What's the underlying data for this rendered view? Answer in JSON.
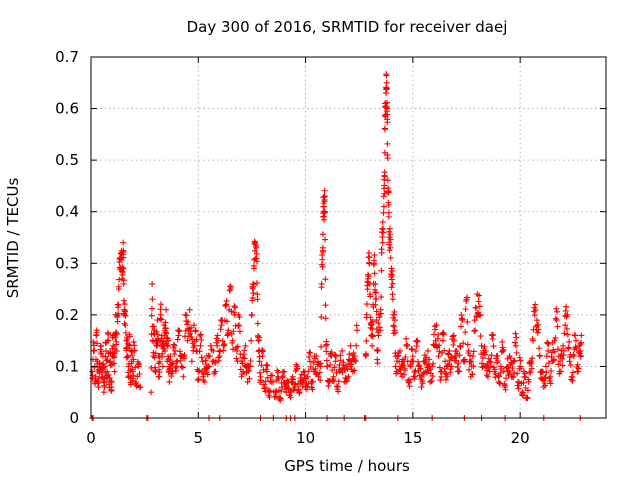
{
  "chart_data": {
    "type": "scatter",
    "title": "Day 300 of 2016, SRMTID for receiver daej",
    "xlabel": "GPS time / hours",
    "ylabel": "SRMTID / TECUs",
    "xlim": [
      0,
      24
    ],
    "ylim": [
      0,
      0.7
    ],
    "xticks": [
      0,
      5,
      10,
      15,
      20
    ],
    "yticks": [
      0,
      0.1,
      0.2,
      0.3,
      0.4,
      0.5,
      0.6,
      0.7
    ],
    "ytick_labels": [
      "0",
      "0.1",
      "0.2",
      "0.3",
      "0.4",
      "0.5",
      "0.6",
      "0.7"
    ],
    "grid": true,
    "marker": "+",
    "color": "#ff0000",
    "series": [
      {
        "name": "SRMTID",
        "points": [
          [
            0.05,
            0.09
          ],
          [
            0.12,
            0.13
          ],
          [
            0.2,
            0.07
          ],
          [
            0.25,
            0.16
          ],
          [
            0.3,
            0.11
          ],
          [
            0.35,
            0.06
          ],
          [
            0.4,
            0.1
          ],
          [
            0.45,
            0.14
          ],
          [
            0.5,
            0.08
          ],
          [
            0.55,
            0.12
          ],
          [
            0.6,
            0.05
          ],
          [
            0.65,
            0.1
          ],
          [
            0.7,
            0.13
          ],
          [
            0.75,
            0.09
          ],
          [
            0.8,
            0.15
          ],
          [
            0.85,
            0.07
          ],
          [
            0.9,
            0.11
          ],
          [
            0.95,
            0.06
          ],
          [
            1.0,
            0.12
          ],
          [
            1.05,
            0.16
          ],
          [
            1.1,
            0.09
          ],
          [
            1.15,
            0.2
          ],
          [
            1.2,
            0.13
          ],
          [
            1.25,
            0.22
          ],
          [
            1.3,
            0.25
          ],
          [
            1.35,
            0.31
          ],
          [
            1.4,
            0.32
          ],
          [
            1.45,
            0.27
          ],
          [
            1.5,
            0.34
          ],
          [
            1.52,
            0.26
          ],
          [
            1.55,
            0.21
          ],
          [
            1.6,
            0.18
          ],
          [
            1.65,
            0.15
          ],
          [
            1.7,
            0.12
          ],
          [
            1.75,
            0.1
          ],
          [
            1.8,
            0.14
          ],
          [
            1.85,
            0.08
          ],
          [
            1.9,
            0.11
          ],
          [
            1.95,
            0.09
          ],
          [
            2.0,
            0.13
          ],
          [
            2.1,
            0.07
          ],
          [
            2.2,
            0.1
          ],
          [
            2.3,
            0.06
          ],
          [
            2.8,
            0.05
          ],
          [
            2.85,
            0.26
          ],
          [
            2.9,
            0.12
          ],
          [
            2.95,
            0.17
          ],
          [
            3.0,
            0.09
          ],
          [
            3.05,
            0.14
          ],
          [
            3.1,
            0.19
          ],
          [
            3.15,
            0.08
          ],
          [
            3.2,
            0.12
          ],
          [
            3.25,
            0.2
          ],
          [
            3.3,
            0.16
          ],
          [
            3.35,
            0.1
          ],
          [
            3.4,
            0.18
          ],
          [
            3.45,
            0.13
          ],
          [
            3.5,
            0.21
          ],
          [
            3.55,
            0.11
          ],
          [
            3.6,
            0.15
          ],
          [
            3.65,
            0.07
          ],
          [
            3.7,
            0.12
          ],
          [
            3.8,
            0.09
          ],
          [
            3.9,
            0.14
          ],
          [
            4.0,
            0.1
          ],
          [
            4.1,
            0.17
          ],
          [
            4.2,
            0.12
          ],
          [
            4.3,
            0.08
          ],
          [
            4.4,
            0.2
          ],
          [
            4.5,
            0.15
          ],
          [
            4.6,
            0.21
          ],
          [
            4.7,
            0.11
          ],
          [
            4.8,
            0.18
          ],
          [
            4.9,
            0.13
          ],
          [
            5.0,
            0.09
          ],
          [
            5.1,
            0.14
          ],
          [
            5.2,
            0.11
          ],
          [
            5.3,
            0.07
          ],
          [
            5.4,
            0.12
          ],
          [
            5.5,
            0.1
          ],
          [
            5.7,
            0.13
          ],
          [
            5.8,
            0.09
          ],
          [
            5.9,
            0.16
          ],
          [
            6.0,
            0.12
          ],
          [
            6.1,
            0.19
          ],
          [
            6.2,
            0.14
          ],
          [
            6.3,
            0.22
          ],
          [
            6.4,
            0.17
          ],
          [
            6.5,
            0.25
          ],
          [
            6.6,
            0.15
          ],
          [
            6.7,
            0.2
          ],
          [
            6.8,
            0.13
          ],
          [
            6.9,
            0.18
          ],
          [
            7.0,
            0.11
          ],
          [
            7.1,
            0.09
          ],
          [
            7.2,
            0.14
          ],
          [
            7.3,
            0.07
          ],
          [
            7.4,
            0.1
          ],
          [
            7.5,
            0.2
          ],
          [
            7.55,
            0.26
          ],
          [
            7.6,
            0.29
          ],
          [
            7.65,
            0.34
          ],
          [
            7.7,
            0.33
          ],
          [
            7.75,
            0.24
          ],
          [
            7.8,
            0.15
          ],
          [
            7.85,
            0.11
          ],
          [
            7.9,
            0.08
          ],
          [
            8.0,
            0.12
          ],
          [
            8.1,
            0.06
          ],
          [
            8.2,
            0.09
          ],
          [
            8.3,
            0.05
          ],
          [
            8.4,
            0.07
          ],
          [
            8.6,
            0.05
          ],
          [
            8.7,
            0.08
          ],
          [
            8.8,
            0.04
          ],
          [
            8.9,
            0.06
          ],
          [
            9.0,
            0.09
          ],
          [
            9.1,
            0.05
          ],
          [
            9.2,
            0.07
          ],
          [
            9.3,
            0.04
          ],
          [
            9.4,
            0.08
          ],
          [
            9.5,
            0.06
          ],
          [
            9.6,
            0.1
          ],
          [
            9.7,
            0.05
          ],
          [
            9.8,
            0.07
          ],
          [
            9.9,
            0.09
          ],
          [
            10.0,
            0.06
          ],
          [
            10.1,
            0.08
          ],
          [
            10.2,
            0.11
          ],
          [
            10.3,
            0.07
          ],
          [
            10.4,
            0.09
          ],
          [
            10.5,
            0.12
          ],
          [
            10.6,
            0.08
          ],
          [
            10.7,
            0.1
          ],
          [
            10.75,
            0.26
          ],
          [
            10.8,
            0.33
          ],
          [
            10.82,
            0.39
          ],
          [
            10.85,
            0.41
          ],
          [
            10.88,
            0.42
          ],
          [
            10.9,
            0.4
          ],
          [
            10.95,
            0.14
          ],
          [
            11.0,
            0.1
          ],
          [
            11.1,
            0.07
          ],
          [
            11.2,
            0.12
          ],
          [
            11.3,
            0.08
          ],
          [
            11.4,
            0.11
          ],
          [
            11.5,
            0.06
          ],
          [
            11.6,
            0.09
          ],
          [
            11.7,
            0.13
          ],
          [
            11.8,
            0.07
          ],
          [
            11.9,
            0.1
          ],
          [
            12.0,
            0.08
          ],
          [
            12.1,
            0.14
          ],
          [
            12.2,
            0.09
          ],
          [
            12.3,
            0.12
          ],
          [
            12.4,
            0.17
          ],
          [
            12.8,
            0.12
          ],
          [
            12.85,
            0.2
          ],
          [
            12.9,
            0.27
          ],
          [
            12.95,
            0.32
          ],
          [
            13.0,
            0.24
          ],
          [
            13.05,
            0.18
          ],
          [
            13.1,
            0.14
          ],
          [
            13.15,
            0.22
          ],
          [
            13.2,
            0.3
          ],
          [
            13.25,
            0.26
          ],
          [
            13.3,
            0.19
          ],
          [
            13.35,
            0.13
          ],
          [
            13.4,
            0.16
          ],
          [
            13.5,
            0.21
          ],
          [
            13.55,
            0.32
          ],
          [
            13.6,
            0.38
          ],
          [
            13.65,
            0.41
          ],
          [
            13.68,
            0.47
          ],
          [
            13.7,
            0.56
          ],
          [
            13.72,
            0.61
          ],
          [
            13.75,
            0.63
          ],
          [
            13.78,
            0.65
          ],
          [
            13.8,
            0.6
          ],
          [
            13.82,
            0.51
          ],
          [
            13.85,
            0.44
          ],
          [
            13.88,
            0.39
          ],
          [
            13.9,
            0.35
          ],
          [
            13.95,
            0.33
          ],
          [
            14.0,
            0.29
          ],
          [
            14.05,
            0.24
          ],
          [
            14.1,
            0.2
          ],
          [
            14.15,
            0.17
          ],
          [
            14.2,
            0.12
          ],
          [
            14.3,
            0.09
          ],
          [
            14.4,
            0.13
          ],
          [
            14.5,
            0.08
          ],
          [
            14.6,
            0.11
          ],
          [
            14.7,
            0.14
          ],
          [
            14.8,
            0.07
          ],
          [
            14.9,
            0.1
          ],
          [
            15.0,
            0.12
          ],
          [
            15.1,
            0.08
          ],
          [
            15.2,
            0.15
          ],
          [
            15.3,
            0.1
          ],
          [
            15.4,
            0.06
          ],
          [
            15.5,
            0.11
          ],
          [
            15.6,
            0.09
          ],
          [
            15.7,
            0.13
          ],
          [
            15.8,
            0.07
          ],
          [
            15.9,
            0.1
          ],
          [
            16.0,
            0.14
          ],
          [
            16.1,
            0.18
          ],
          [
            16.2,
            0.12
          ],
          [
            16.3,
            0.09
          ],
          [
            16.4,
            0.15
          ],
          [
            16.5,
            0.11
          ],
          [
            16.6,
            0.08
          ],
          [
            16.7,
            0.13
          ],
          [
            16.8,
            0.1
          ],
          [
            16.9,
            0.16
          ],
          [
            17.0,
            0.12
          ],
          [
            17.1,
            0.09
          ],
          [
            17.2,
            0.14
          ],
          [
            17.3,
            0.19
          ],
          [
            17.4,
            0.11
          ],
          [
            17.5,
            0.23
          ],
          [
            17.6,
            0.13
          ],
          [
            17.7,
            0.08
          ],
          [
            17.8,
            0.12
          ],
          [
            17.9,
            0.17
          ],
          [
            18.0,
            0.24
          ],
          [
            18.1,
            0.2
          ],
          [
            18.2,
            0.14
          ],
          [
            18.3,
            0.1
          ],
          [
            18.4,
            0.13
          ],
          [
            18.5,
            0.08
          ],
          [
            18.6,
            0.11
          ],
          [
            18.7,
            0.16
          ],
          [
            18.8,
            0.09
          ],
          [
            18.9,
            0.12
          ],
          [
            19.0,
            0.07
          ],
          [
            19.1,
            0.1
          ],
          [
            19.2,
            0.13
          ],
          [
            19.3,
            0.06
          ],
          [
            19.4,
            0.09
          ],
          [
            19.5,
            0.12
          ],
          [
            19.6,
            0.08
          ],
          [
            19.7,
            0.11
          ],
          [
            19.8,
            0.14
          ],
          [
            19.9,
            0.07
          ],
          [
            20.0,
            0.1
          ],
          [
            20.1,
            0.05
          ],
          [
            20.2,
            0.08
          ],
          [
            20.3,
            0.04
          ],
          [
            20.4,
            0.07
          ],
          [
            20.5,
            0.11
          ],
          [
            20.6,
            0.15
          ],
          [
            20.7,
            0.22
          ],
          [
            20.8,
            0.18
          ],
          [
            20.9,
            0.12
          ],
          [
            21.0,
            0.09
          ],
          [
            21.1,
            0.06
          ],
          [
            21.2,
            0.1
          ],
          [
            21.3,
            0.13
          ],
          [
            21.4,
            0.08
          ],
          [
            21.5,
            0.11
          ],
          [
            21.6,
            0.15
          ],
          [
            21.7,
            0.19
          ],
          [
            21.8,
            0.12
          ],
          [
            21.9,
            0.09
          ],
          [
            22.0,
            0.14
          ],
          [
            22.1,
            0.18
          ],
          [
            22.2,
            0.2
          ],
          [
            22.3,
            0.11
          ],
          [
            22.4,
            0.08
          ],
          [
            22.5,
            0.12
          ],
          [
            22.6,
            0.15
          ],
          [
            22.7,
            0.09
          ],
          [
            22.8,
            0.13
          ],
          [
            22.85,
            0.16
          ]
        ],
        "zero_points": [
          0.05,
          0.1,
          2.6,
          2.65,
          5.5,
          6.0,
          7.9,
          8.5,
          9.1,
          9.3,
          9.5,
          11.0,
          11.8,
          12.75,
          12.8,
          14.3,
          15.9,
          17.4,
          18.2,
          19.3,
          21.1,
          22.8
        ]
      }
    ]
  }
}
